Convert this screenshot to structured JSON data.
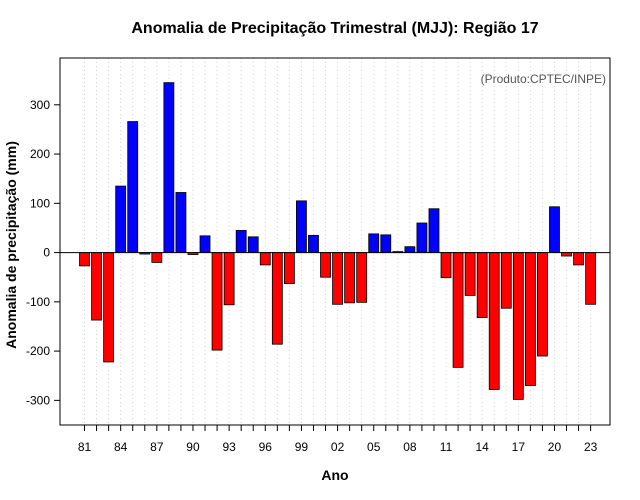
{
  "chart_data": {
    "type": "bar",
    "title": "Anomalia de Precipitação Trimestral (MJJ): Região 17",
    "xlabel": "Ano",
    "ylabel": "Anomalia de precipitação (mm)",
    "annotation": "(Produto:CPTEC/INPE)",
    "ylim": [
      -350,
      395
    ],
    "yticks": [
      -300,
      -200,
      -100,
      0,
      100,
      200,
      300
    ],
    "grid": true,
    "colors": {
      "positive": "#0000ff",
      "negative": "#ff0000",
      "edge": "#000000"
    },
    "xtick_labels": [
      "81",
      "84",
      "87",
      "90",
      "93",
      "96",
      "99",
      "02",
      "05",
      "08",
      "11",
      "14",
      "17",
      "20",
      "23"
    ],
    "categories": [
      "1981",
      "1982",
      "1983",
      "1984",
      "1985",
      "1986",
      "1987",
      "1988",
      "1989",
      "1990",
      "1991",
      "1992",
      "1993",
      "1994",
      "1995",
      "1996",
      "1997",
      "1998",
      "1999",
      "2000",
      "2001",
      "2002",
      "2003",
      "2004",
      "2005",
      "2006",
      "2007",
      "2008",
      "2009",
      "2010",
      "2011",
      "2012",
      "2013",
      "2014",
      "2015",
      "2016",
      "2017",
      "2018",
      "2019",
      "2020",
      "2021",
      "2022",
      "2023"
    ],
    "values": [
      -27,
      -137,
      -222,
      135,
      266,
      -3,
      -20,
      345,
      122,
      -4,
      34,
      -198,
      -106,
      45,
      32,
      -25,
      -186,
      -63,
      105,
      35,
      -50,
      -105,
      -102,
      -101,
      38,
      36,
      2,
      12,
      60,
      89,
      -51,
      -233,
      -87,
      -132,
      -278,
      -113,
      -298,
      -270,
      -210,
      93,
      -7,
      -25,
      -105
    ]
  }
}
